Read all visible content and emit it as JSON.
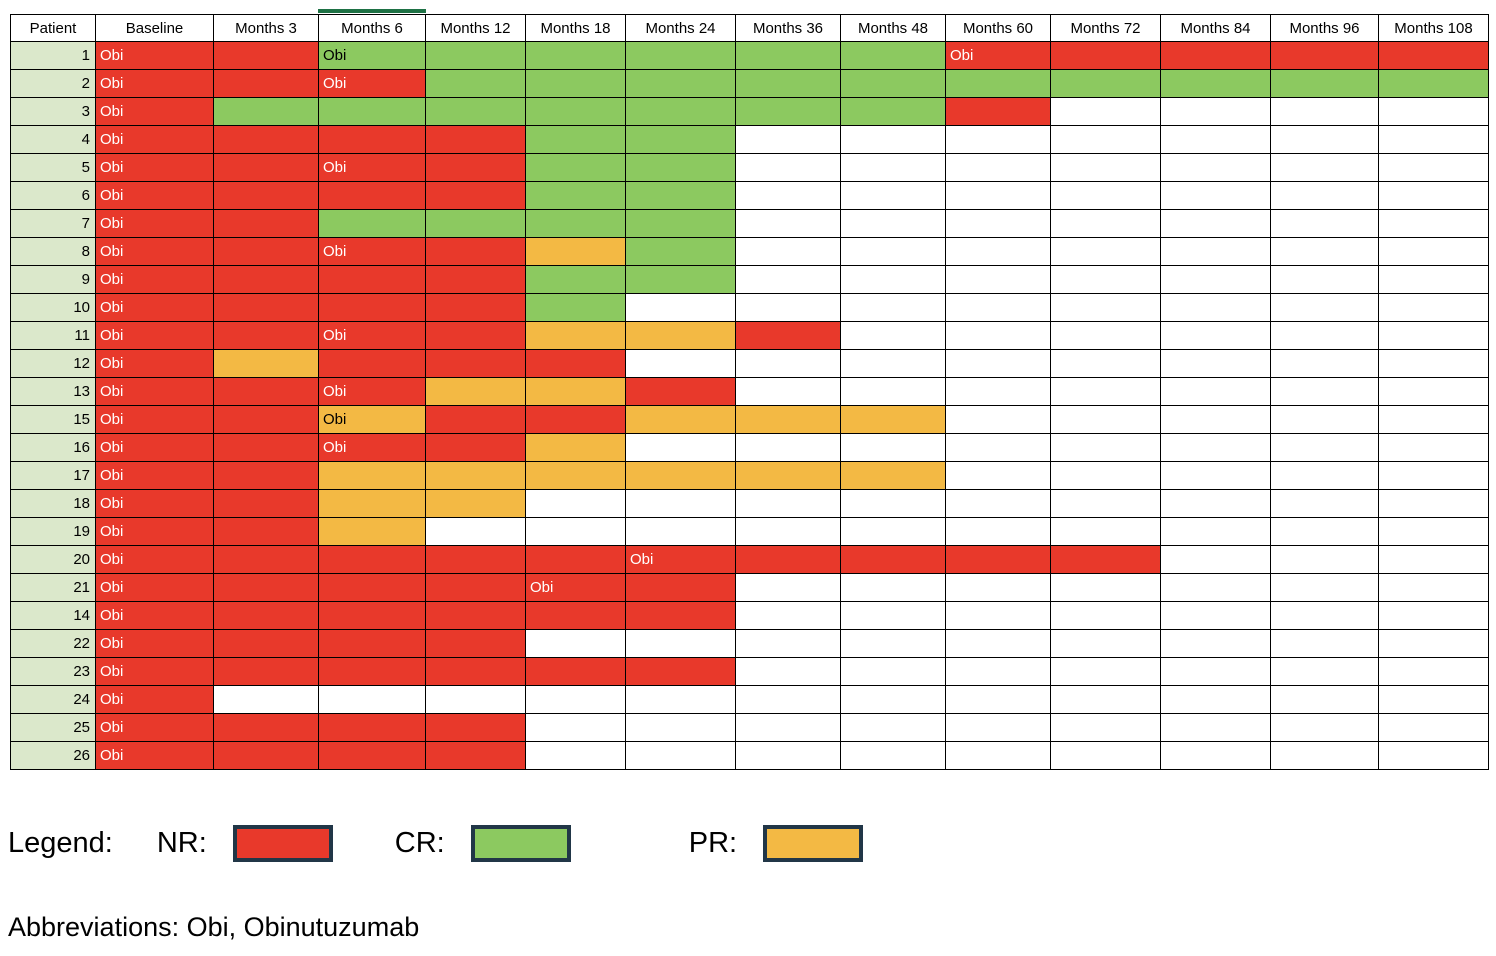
{
  "colors": {
    "nr": "#e8392b",
    "cr": "#8cc960",
    "pr": "#f3b944",
    "patient_bg": "#dbe8cb",
    "grid": "#000000",
    "swatch_border": "#213647",
    "active_marker": "#1e7145",
    "obi_on_nr": "#ffffff",
    "obi_on_other": "#000000"
  },
  "legend": {
    "title": "Legend:",
    "items": [
      {
        "label": "NR:",
        "key": "nr"
      },
      {
        "label": "CR:",
        "key": "cr"
      },
      {
        "label": "PR:",
        "key": "pr"
      }
    ]
  },
  "abbreviations": "Abbreviations: Obi, Obinutuzumab",
  "chart_data": {
    "type": "heatmap",
    "obi_label": "Obi",
    "active_column": "Months 6",
    "legend_position": "bottom",
    "cell_codes": {
      "NR": "no response (red)",
      "CR": "complete response (green)",
      "PR": "partial response (orange)",
      "*": "Obi (obinutuzumab) administered at this timepoint",
      "": "no data (white)"
    },
    "columns": [
      "Patient",
      "Baseline",
      "Months 3",
      "Months 6",
      "Months 12",
      "Months 18",
      "Months 24",
      "Months 36",
      "Months 48",
      "Months 60",
      "Months 72",
      "Months 84",
      "Months 96",
      "Months 108"
    ],
    "rows": [
      {
        "patient": "1",
        "cells": [
          "NR*",
          "NR",
          "CR*",
          "CR",
          "CR",
          "CR",
          "CR",
          "CR",
          "NR*",
          "NR",
          "NR",
          "NR",
          "NR"
        ]
      },
      {
        "patient": "2",
        "cells": [
          "NR*",
          "NR",
          "NR*",
          "CR",
          "CR",
          "CR",
          "CR",
          "CR",
          "CR",
          "CR",
          "CR",
          "CR",
          "CR"
        ]
      },
      {
        "patient": "3",
        "cells": [
          "NR*",
          "CR",
          "CR",
          "CR",
          "CR",
          "CR",
          "CR",
          "CR",
          "NR",
          "",
          "",
          "",
          ""
        ]
      },
      {
        "patient": "4",
        "cells": [
          "NR*",
          "NR",
          "NR",
          "NR",
          "CR",
          "CR",
          "",
          "",
          "",
          "",
          "",
          "",
          ""
        ]
      },
      {
        "patient": "5",
        "cells": [
          "NR*",
          "NR",
          "NR*",
          "NR",
          "CR",
          "CR",
          "",
          "",
          "",
          "",
          "",
          "",
          ""
        ]
      },
      {
        "patient": "6",
        "cells": [
          "NR*",
          "NR",
          "NR",
          "NR",
          "CR",
          "CR",
          "",
          "",
          "",
          "",
          "",
          "",
          ""
        ]
      },
      {
        "patient": "7",
        "cells": [
          "NR*",
          "NR",
          "CR",
          "CR",
          "CR",
          "CR",
          "",
          "",
          "",
          "",
          "",
          "",
          ""
        ]
      },
      {
        "patient": "8",
        "cells": [
          "NR*",
          "NR",
          "NR*",
          "NR",
          "PR",
          "CR",
          "",
          "",
          "",
          "",
          "",
          "",
          ""
        ]
      },
      {
        "patient": "9",
        "cells": [
          "NR*",
          "NR",
          "NR",
          "NR",
          "CR",
          "CR",
          "",
          "",
          "",
          "",
          "",
          "",
          ""
        ]
      },
      {
        "patient": "10",
        "cells": [
          "NR*",
          "NR",
          "NR",
          "NR",
          "CR",
          "",
          "",
          "",
          "",
          "",
          "",
          "",
          ""
        ]
      },
      {
        "patient": "11",
        "cells": [
          "NR*",
          "NR",
          "NR*",
          "NR",
          "PR",
          "PR",
          "NR",
          "",
          "",
          "",
          "",
          "",
          ""
        ]
      },
      {
        "patient": "12",
        "cells": [
          "NR*",
          "PR",
          "NR",
          "NR",
          "NR",
          "",
          "",
          "",
          "",
          "",
          "",
          "",
          ""
        ]
      },
      {
        "patient": "13",
        "cells": [
          "NR*",
          "NR",
          "NR*",
          "PR",
          "PR",
          "NR",
          "",
          "",
          "",
          "",
          "",
          "",
          ""
        ]
      },
      {
        "patient": "15",
        "cells": [
          "NR*",
          "NR",
          "PR*",
          "NR",
          "NR",
          "PR",
          "PR",
          "PR",
          "",
          "",
          "",
          "",
          ""
        ]
      },
      {
        "patient": "16",
        "cells": [
          "NR*",
          "NR",
          "NR*",
          "NR",
          "PR",
          "",
          "",
          "",
          "",
          "",
          "",
          "",
          ""
        ]
      },
      {
        "patient": "17",
        "cells": [
          "NR*",
          "NR",
          "PR",
          "PR",
          "PR",
          "PR",
          "PR",
          "PR",
          "",
          "",
          "",
          "",
          ""
        ]
      },
      {
        "patient": "18",
        "cells": [
          "NR*",
          "NR",
          "PR",
          "PR",
          "",
          "",
          "",
          "",
          "",
          "",
          "",
          "",
          ""
        ]
      },
      {
        "patient": "19",
        "cells": [
          "NR*",
          "NR",
          "PR",
          "",
          "",
          "",
          "",
          "",
          "",
          "",
          "",
          "",
          ""
        ]
      },
      {
        "patient": "20",
        "cells": [
          "NR*",
          "NR",
          "NR",
          "NR",
          "NR",
          "NR*",
          "NR",
          "NR",
          "NR",
          "NR",
          "",
          "",
          ""
        ]
      },
      {
        "patient": "21",
        "cells": [
          "NR*",
          "NR",
          "NR",
          "NR",
          "NR*",
          "NR",
          "",
          "",
          "",
          "",
          "",
          "",
          ""
        ]
      },
      {
        "patient": "14",
        "cells": [
          "NR*",
          "NR",
          "NR",
          "NR",
          "NR",
          "NR",
          "",
          "",
          "",
          "",
          "",
          "",
          ""
        ]
      },
      {
        "patient": "22",
        "cells": [
          "NR*",
          "NR",
          "NR",
          "NR",
          "",
          "",
          "",
          "",
          "",
          "",
          "",
          "",
          ""
        ]
      },
      {
        "patient": "23",
        "cells": [
          "NR*",
          "NR",
          "NR",
          "NR",
          "NR",
          "NR",
          "",
          "",
          "",
          "",
          "",
          "",
          ""
        ]
      },
      {
        "patient": "24",
        "cells": [
          "NR*",
          "",
          "",
          "",
          "",
          "",
          "",
          "",
          "",
          "",
          "",
          "",
          ""
        ]
      },
      {
        "patient": "25",
        "cells": [
          "NR*",
          "NR",
          "NR",
          "NR",
          "",
          "",
          "",
          "",
          "",
          "",
          "",
          "",
          ""
        ]
      },
      {
        "patient": "26",
        "cells": [
          "NR*",
          "NR",
          "NR",
          "NR",
          "",
          "",
          "",
          "",
          "",
          "",
          "",
          "",
          ""
        ]
      }
    ]
  }
}
